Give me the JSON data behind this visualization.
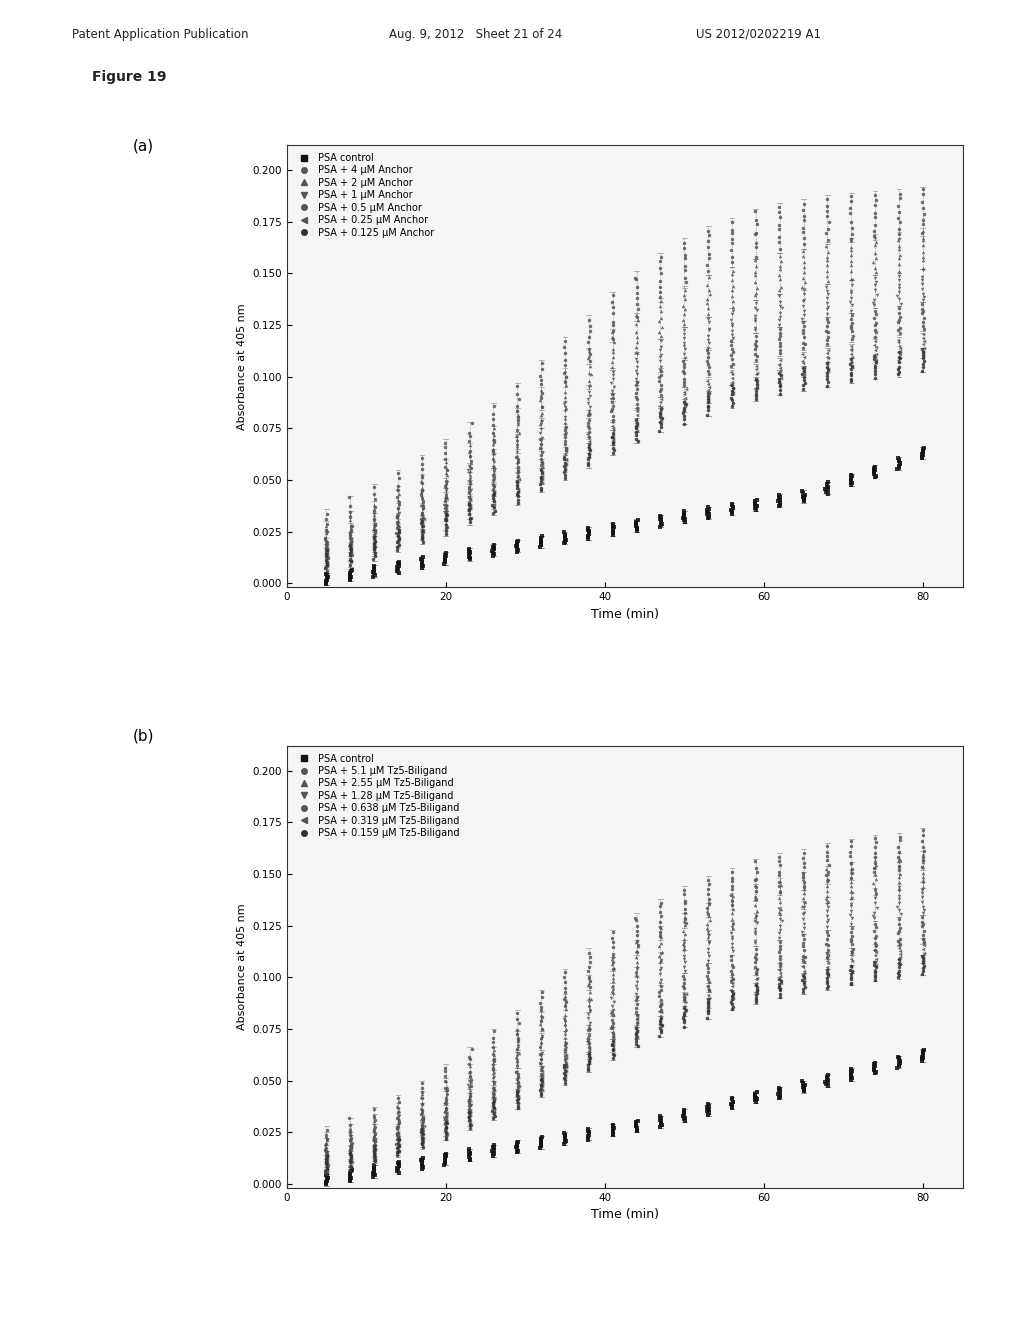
{
  "header_left": "Patent Application Publication",
  "header_mid": "Aug. 9, 2012   Sheet 21 of 24",
  "header_right": "US 2012/0202219 A1",
  "figure_label": "Figure 19",
  "panel_a_label": "(a)",
  "panel_b_label": "(b)",
  "xlabel": "Time (min)",
  "ylabel": "Absorbance at 405 nm",
  "xlim": [
    0,
    85
  ],
  "ylim": [
    -0.002,
    0.212
  ],
  "xticks": [
    0,
    20,
    40,
    60,
    80
  ],
  "yticks": [
    0.0,
    0.025,
    0.05,
    0.075,
    0.1,
    0.125,
    0.15,
    0.175,
    0.2
  ],
  "legend_a": [
    "PSA control",
    "PSA + 4 μM Anchor",
    "PSA + 2 μM Anchor",
    "PSA + 1 μM Anchor",
    "PSA + 0.5 μM Anchor",
    "PSA + 0.25 μM Anchor",
    "PSA + 0.125 μM Anchor"
  ],
  "legend_b": [
    "PSA control",
    "PSA + 5.1 μM Tz5-Biligand",
    "PSA + 2.55 μM Tz5-Biligand",
    "PSA + 1.28 μM Tz5-Biligand",
    "PSA + 0.638 μM Tz5-Biligand",
    "PSA + 0.319 μM Tz5-Biligand",
    "PSA + 0.159 μM Tz5-Biligand"
  ],
  "time_points": [
    5,
    8,
    11,
    14,
    17,
    20,
    23,
    26,
    29,
    32,
    35,
    38,
    41,
    44,
    47,
    50,
    53,
    56,
    59,
    62,
    65,
    68,
    71,
    74,
    77,
    80
  ],
  "series_a_means": [
    [
      0.002,
      0.004,
      0.006,
      0.008,
      0.01,
      0.012,
      0.014,
      0.016,
      0.018,
      0.02,
      0.022,
      0.024,
      0.026,
      0.028,
      0.03,
      0.032,
      0.034,
      0.036,
      0.038,
      0.04,
      0.042,
      0.046,
      0.05,
      0.054,
      0.058,
      0.063
    ],
    [
      0.024,
      0.03,
      0.036,
      0.043,
      0.05,
      0.058,
      0.066,
      0.075,
      0.085,
      0.096,
      0.107,
      0.118,
      0.129,
      0.139,
      0.148,
      0.155,
      0.161,
      0.165,
      0.169,
      0.172,
      0.174,
      0.176,
      0.177,
      0.178,
      0.179,
      0.18
    ],
    [
      0.02,
      0.025,
      0.03,
      0.037,
      0.043,
      0.05,
      0.058,
      0.066,
      0.075,
      0.085,
      0.094,
      0.104,
      0.113,
      0.121,
      0.128,
      0.134,
      0.139,
      0.143,
      0.147,
      0.15,
      0.152,
      0.155,
      0.157,
      0.159,
      0.16,
      0.162
    ],
    [
      0.017,
      0.021,
      0.026,
      0.031,
      0.037,
      0.043,
      0.05,
      0.057,
      0.064,
      0.072,
      0.08,
      0.088,
      0.096,
      0.104,
      0.11,
      0.116,
      0.121,
      0.125,
      0.129,
      0.132,
      0.135,
      0.137,
      0.139,
      0.141,
      0.142,
      0.144
    ],
    [
      0.015,
      0.018,
      0.022,
      0.027,
      0.032,
      0.037,
      0.043,
      0.049,
      0.056,
      0.063,
      0.07,
      0.077,
      0.085,
      0.091,
      0.097,
      0.102,
      0.107,
      0.111,
      0.114,
      0.117,
      0.12,
      0.122,
      0.124,
      0.126,
      0.127,
      0.129
    ],
    [
      0.013,
      0.016,
      0.019,
      0.023,
      0.027,
      0.032,
      0.037,
      0.042,
      0.048,
      0.054,
      0.06,
      0.067,
      0.073,
      0.079,
      0.084,
      0.089,
      0.093,
      0.097,
      0.1,
      0.103,
      0.106,
      0.108,
      0.11,
      0.112,
      0.113,
      0.115
    ],
    [
      0.011,
      0.014,
      0.017,
      0.021,
      0.025,
      0.029,
      0.034,
      0.039,
      0.044,
      0.05,
      0.056,
      0.062,
      0.068,
      0.074,
      0.079,
      0.083,
      0.087,
      0.091,
      0.094,
      0.097,
      0.099,
      0.101,
      0.103,
      0.105,
      0.106,
      0.108
    ]
  ],
  "series_b_means": [
    [
      0.002,
      0.004,
      0.006,
      0.008,
      0.01,
      0.012,
      0.014,
      0.016,
      0.018,
      0.02,
      0.022,
      0.024,
      0.026,
      0.028,
      0.03,
      0.033,
      0.036,
      0.039,
      0.042,
      0.044,
      0.047,
      0.05,
      0.053,
      0.056,
      0.059,
      0.062
    ],
    [
      0.018,
      0.022,
      0.027,
      0.033,
      0.04,
      0.048,
      0.056,
      0.065,
      0.074,
      0.084,
      0.094,
      0.104,
      0.113,
      0.121,
      0.128,
      0.134,
      0.139,
      0.143,
      0.147,
      0.15,
      0.152,
      0.155,
      0.157,
      0.159,
      0.16,
      0.162
    ],
    [
      0.016,
      0.02,
      0.025,
      0.03,
      0.036,
      0.042,
      0.049,
      0.057,
      0.065,
      0.074,
      0.083,
      0.092,
      0.101,
      0.109,
      0.116,
      0.122,
      0.127,
      0.132,
      0.136,
      0.139,
      0.142,
      0.145,
      0.147,
      0.149,
      0.151,
      0.152
    ],
    [
      0.014,
      0.017,
      0.021,
      0.026,
      0.031,
      0.037,
      0.043,
      0.05,
      0.057,
      0.065,
      0.073,
      0.081,
      0.089,
      0.097,
      0.104,
      0.11,
      0.115,
      0.119,
      0.123,
      0.126,
      0.129,
      0.131,
      0.133,
      0.135,
      0.137,
      0.138
    ],
    [
      0.012,
      0.015,
      0.018,
      0.022,
      0.027,
      0.032,
      0.037,
      0.043,
      0.049,
      0.056,
      0.063,
      0.07,
      0.077,
      0.084,
      0.09,
      0.095,
      0.1,
      0.104,
      0.108,
      0.111,
      0.114,
      0.116,
      0.118,
      0.12,
      0.122,
      0.123
    ],
    [
      0.01,
      0.013,
      0.016,
      0.02,
      0.024,
      0.029,
      0.034,
      0.039,
      0.045,
      0.051,
      0.057,
      0.064,
      0.07,
      0.076,
      0.082,
      0.087,
      0.091,
      0.095,
      0.098,
      0.101,
      0.104,
      0.106,
      0.108,
      0.11,
      0.112,
      0.113
    ],
    [
      0.009,
      0.011,
      0.014,
      0.018,
      0.022,
      0.026,
      0.031,
      0.036,
      0.041,
      0.047,
      0.053,
      0.059,
      0.065,
      0.071,
      0.076,
      0.081,
      0.085,
      0.089,
      0.092,
      0.095,
      0.097,
      0.099,
      0.101,
      0.103,
      0.104,
      0.106
    ]
  ],
  "series_errors_a": [
    0.003,
    0.012,
    0.01,
    0.008,
    0.007,
    0.006,
    0.006
  ],
  "series_errors_b": [
    0.003,
    0.01,
    0.009,
    0.008,
    0.007,
    0.006,
    0.005
  ],
  "markers_a": [
    "s",
    "o",
    "^",
    "v",
    "o",
    "<",
    "o"
  ],
  "markers_b": [
    "s",
    "o",
    "^",
    "v",
    "o",
    "<",
    "o"
  ],
  "colors_gray": [
    "#1a1a1a",
    "#555555",
    "#555555",
    "#555555",
    "#555555",
    "#555555",
    "#333333"
  ],
  "bg_color": "#ffffff",
  "plot_bg": "#f5f5f5"
}
